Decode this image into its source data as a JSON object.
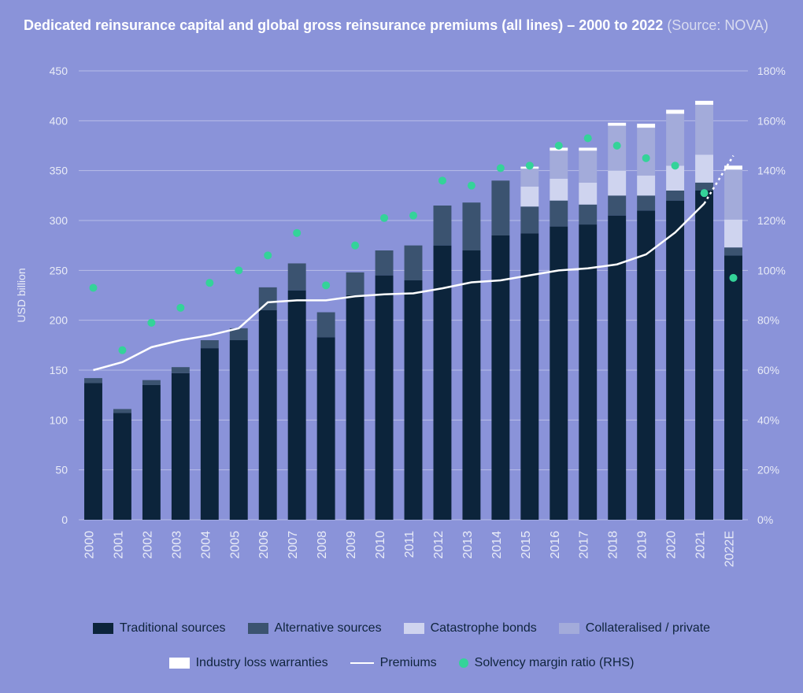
{
  "title": {
    "bold": "Dedicated reinsurance capital and global gross reinsurance premiums (all lines) – 2000 to 2022",
    "src": " (Source: NOVA)"
  },
  "chart": {
    "type": "stacked-bar + line + scatter, dual y-axis",
    "background_color": "#8a93d9",
    "grid_color": "#b7bde7",
    "text_color": "#e9ecf7",
    "left_axis": {
      "label": "USD billion",
      "min": 0,
      "max": 450,
      "step": 50
    },
    "right_axis": {
      "min": 0,
      "max": 180,
      "step": 20,
      "suffix": "%"
    },
    "categories": [
      "2000",
      "2001",
      "2002",
      "2003",
      "2004",
      "2005",
      "2006",
      "2007",
      "2008",
      "2009",
      "2010",
      "2011",
      "2012",
      "2013",
      "2014",
      "2015",
      "2016",
      "2017",
      "2018",
      "2019",
      "2020",
      "2021",
      "2022E"
    ],
    "bar_width": 0.62,
    "series": {
      "traditional": {
        "label": "Traditional sources",
        "color": "#0c243b"
      },
      "alternative": {
        "label": "Alternative sources",
        "color": "#3b5370"
      },
      "catastrophe": {
        "label": "Catastrophe bonds",
        "color": "#cfd4ef"
      },
      "collateral": {
        "label": "Collateralised / private",
        "color": "#a3abda"
      },
      "ilw": {
        "label": "Industry loss warranties",
        "color": "#ffffff"
      },
      "premiums": {
        "label": "Premiums",
        "color": "#ffffff"
      },
      "solvency": {
        "label": "Solvency margin ratio (RHS)",
        "color": "#34d399"
      }
    },
    "bars": [
      {
        "traditional": 137,
        "alternative": 5
      },
      {
        "traditional": 107,
        "alternative": 4
      },
      {
        "traditional": 135,
        "alternative": 5
      },
      {
        "traditional": 147,
        "alternative": 6
      },
      {
        "traditional": 172,
        "alternative": 8
      },
      {
        "traditional": 180,
        "alternative": 12
      },
      {
        "traditional": 210,
        "alternative": 23
      },
      {
        "traditional": 230,
        "alternative": 27
      },
      {
        "traditional": 183,
        "alternative": 25
      },
      {
        "traditional": 225,
        "alternative": 23
      },
      {
        "traditional": 245,
        "alternative": 25
      },
      {
        "traditional": 240,
        "alternative": 35
      },
      {
        "traditional": 275,
        "alternative": 40
      },
      {
        "traditional": 270,
        "alternative": 48
      },
      {
        "traditional": 285,
        "alternative": 55
      },
      {
        "traditional": 287,
        "alternative": 27,
        "catastrophe": 20,
        "collateral": 18,
        "ilw": 2
      },
      {
        "traditional": 294,
        "alternative": 26,
        "catastrophe": 22,
        "collateral": 28,
        "ilw": 3
      },
      {
        "traditional": 296,
        "alternative": 20,
        "catastrophe": 22,
        "collateral": 32,
        "ilw": 3
      },
      {
        "traditional": 305,
        "alternative": 20,
        "catastrophe": 25,
        "collateral": 45,
        "ilw": 3
      },
      {
        "traditional": 310,
        "alternative": 15,
        "catastrophe": 20,
        "collateral": 48,
        "ilw": 4
      },
      {
        "traditional": 320,
        "alternative": 10,
        "catastrophe": 25,
        "collateral": 52,
        "ilw": 4
      },
      {
        "traditional": 330,
        "alternative": 8,
        "catastrophe": 28,
        "collateral": 50,
        "ilw": 4
      },
      {
        "traditional": 265,
        "alternative": 8,
        "catastrophe": 28,
        "collateral": 50,
        "ilw": 4
      }
    ],
    "premiums_line": [
      150,
      158,
      173,
      180,
      185,
      192,
      218,
      220,
      220,
      224,
      226,
      227,
      232,
      238,
      240,
      245,
      250,
      252,
      256,
      266,
      288,
      317
    ],
    "premiums_forecast_from_index": 21,
    "premiums_forecast": [
      317,
      365
    ],
    "solvency_rhs": [
      93,
      68,
      79,
      85,
      95,
      100,
      106,
      115,
      94,
      110,
      121,
      122,
      136,
      134,
      141,
      142,
      150,
      153,
      150,
      145,
      142,
      131,
      97
    ],
    "solvency_marker_radius": 5,
    "label_fontsize": 14,
    "tick_fontsize": 14
  }
}
